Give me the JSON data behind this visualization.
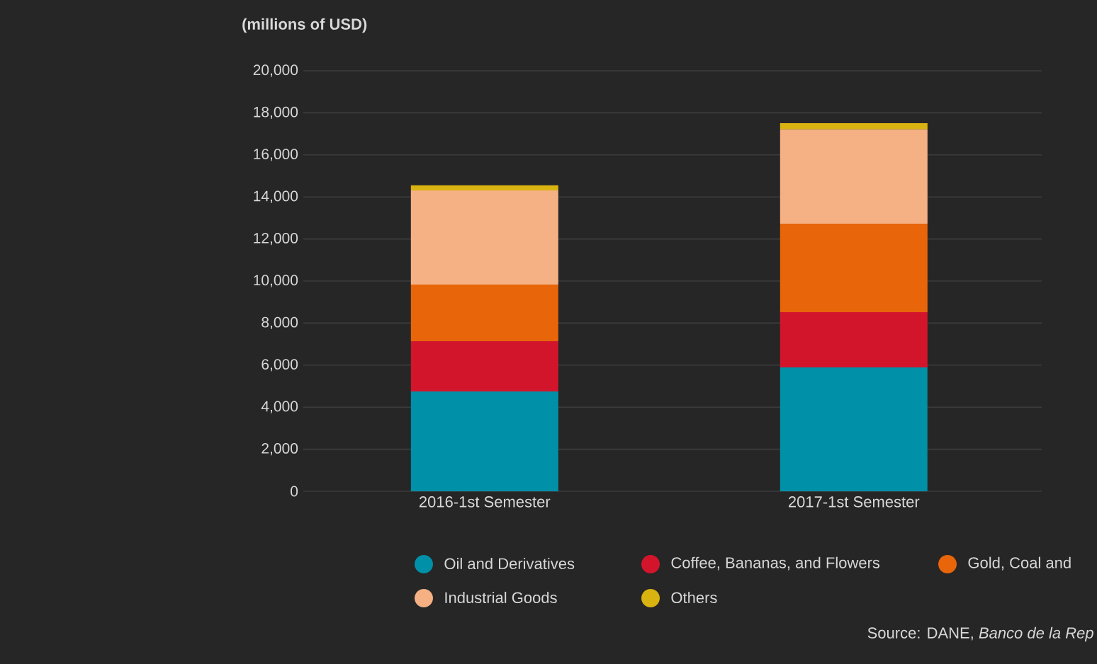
{
  "chart_data": {
    "type": "bar",
    "stacked": true,
    "ylabel": "(millions of USD)",
    "categories": [
      "2016-1st Semester",
      "2017-1st Semester"
    ],
    "series": [
      {
        "name": "Oil and Derivatives",
        "color": "#0090a8",
        "values": [
          4750,
          5890
        ]
      },
      {
        "name": "Coffee, Bananas, and Flowers",
        "color": "#d3152c",
        "values": [
          2390,
          2630
        ]
      },
      {
        "name": "Gold, Coal and",
        "color": "#e8650a",
        "values": [
          2690,
          4210
        ]
      },
      {
        "name": "Industrial Goods",
        "color": "#f5b084",
        "values": [
          4480,
          4480
        ]
      },
      {
        "name": "Others",
        "color": "#d9b310",
        "values": [
          240,
          300
        ]
      }
    ],
    "ylim": [
      0,
      20000
    ],
    "yticks": [
      {
        "value": 0,
        "label": "0"
      },
      {
        "value": 2000,
        "label": "2,000"
      },
      {
        "value": 4000,
        "label": "4,000"
      },
      {
        "value": 6000,
        "label": "6,000"
      },
      {
        "value": 8000,
        "label": "8,000"
      },
      {
        "value": 10000,
        "label": "10,000"
      },
      {
        "value": 12000,
        "label": "12,000"
      },
      {
        "value": 14000,
        "label": "14,000"
      },
      {
        "value": 16000,
        "label": "16,000"
      },
      {
        "value": 18000,
        "label": "18,000"
      },
      {
        "value": 20000,
        "label": "20,000"
      }
    ],
    "grid": "y",
    "legend": "bottom",
    "annotations": [
      "Source: DANE, *Banco de la Rep*"
    ]
  }
}
